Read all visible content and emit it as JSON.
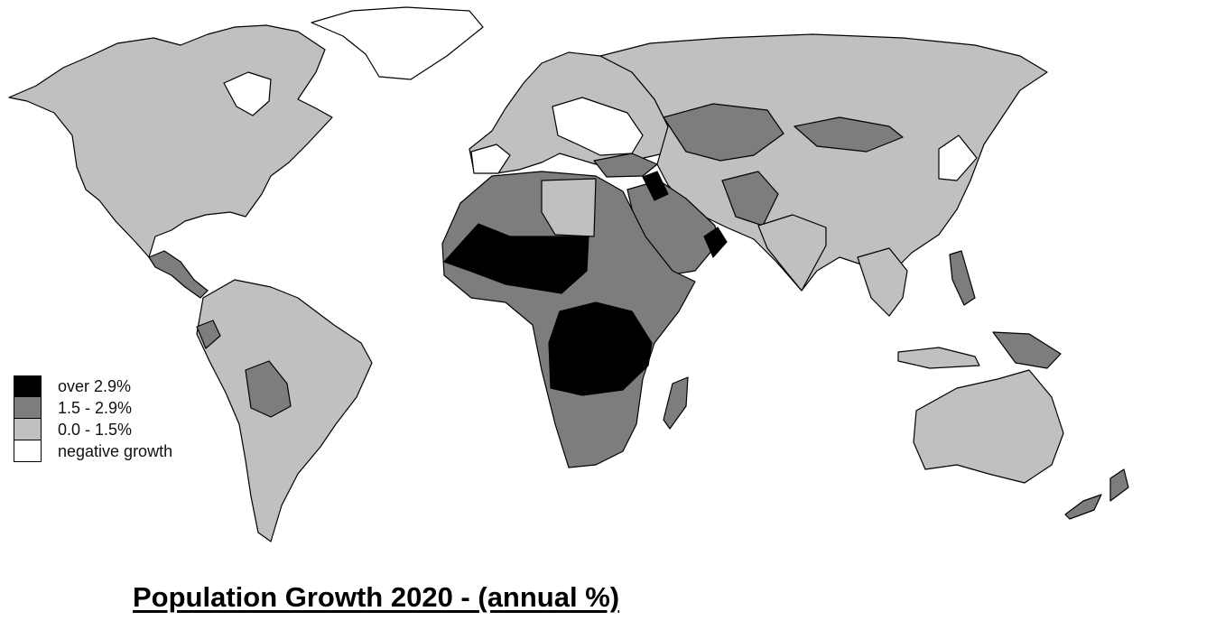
{
  "title": "Population Growth 2020 - (annual %)",
  "legend": [
    {
      "label": "over 2.9%",
      "color": "#000000"
    },
    {
      "label": "1.5 - 2.9%",
      "color": "#7d7d7d"
    },
    {
      "label": "0.0 - 1.5%",
      "color": "#c0c0c0"
    },
    {
      "label": "negative growth",
      "color": "#ffffff"
    }
  ],
  "colors": {
    "over": "#000000",
    "mid": "#7d7d7d",
    "low": "#c0c0c0",
    "negative": "#ffffff",
    "border": "#000000"
  }
}
